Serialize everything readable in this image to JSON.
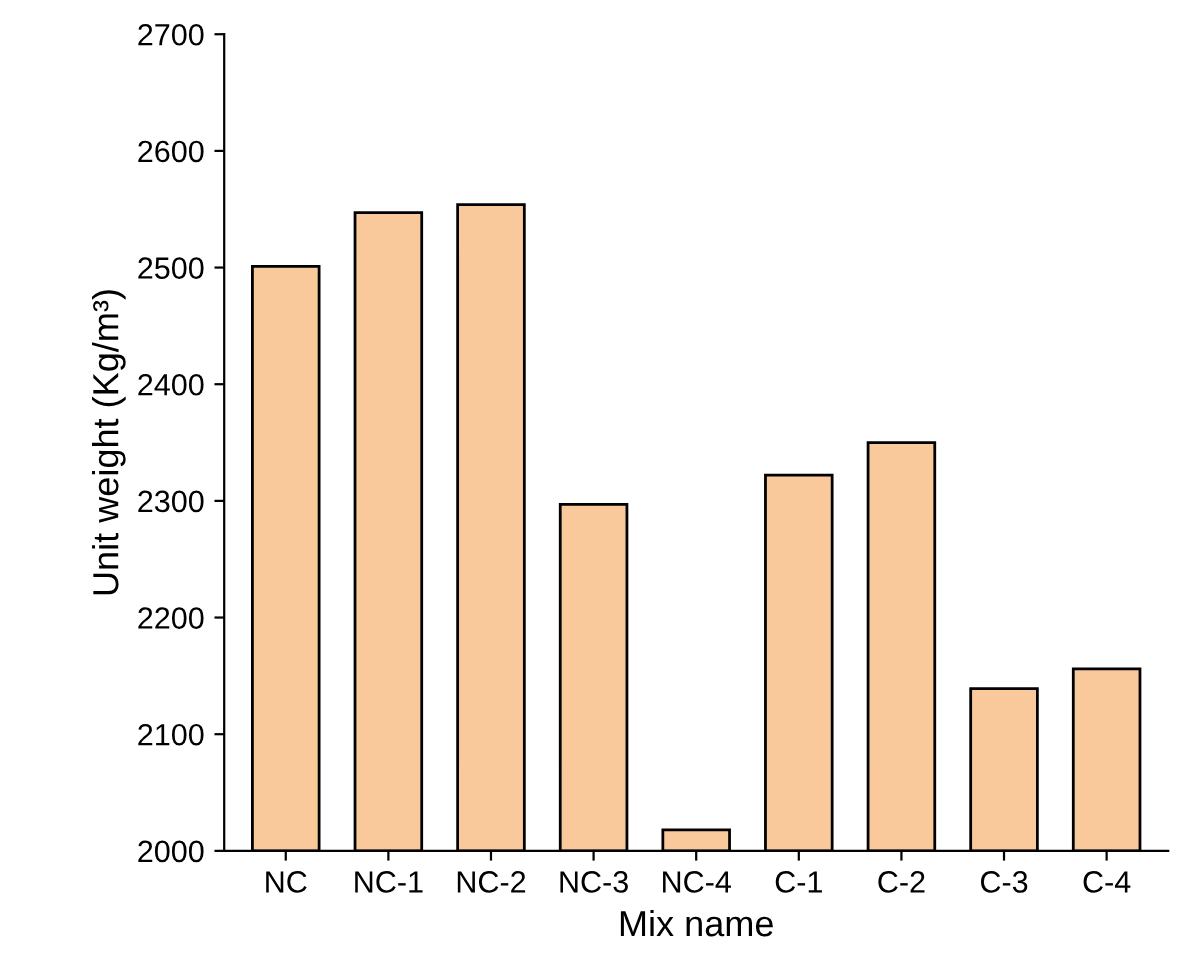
{
  "chart_data": {
    "type": "bar",
    "xlabel": "Mix name",
    "ylabel": "Unit weight (Kg/m³)",
    "categories": [
      "NC",
      "NC-1",
      "NC-2",
      "NC-3",
      "NC-4",
      "C-1",
      "C-2",
      "C-3",
      "C-4"
    ],
    "values": [
      2501,
      2547,
      2554,
      2297,
      2018,
      2322,
      2350,
      2139,
      2156
    ],
    "color": "#f9c89b",
    "ylim": [
      2000,
      2700
    ],
    "yticks": [
      2000,
      2100,
      2200,
      2300,
      2400,
      2500,
      2600,
      2700
    ],
    "grid": false
  }
}
